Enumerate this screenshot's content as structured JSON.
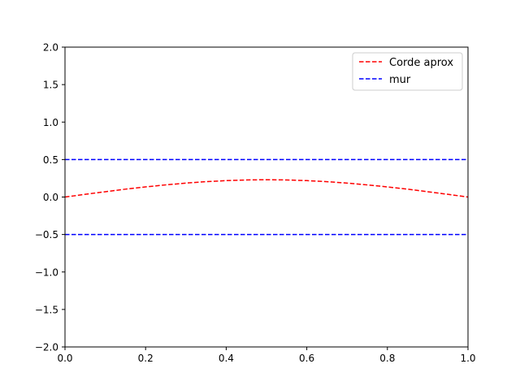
{
  "chart_data": {
    "type": "line",
    "xlim": [
      0.0,
      1.0
    ],
    "ylim": [
      -2.0,
      2.0
    ],
    "x_ticks": [
      "0.0",
      "0.2",
      "0.4",
      "0.6",
      "0.8",
      "1.0"
    ],
    "x_tick_values": [
      0.0,
      0.2,
      0.4,
      0.6,
      0.8,
      1.0
    ],
    "y_ticks": [
      "2.0",
      "1.5",
      "1.0",
      "0.5",
      "0.0",
      "−0.5",
      "−1.0",
      "−1.5",
      "−2.0"
    ],
    "y_tick_values": [
      2.0,
      1.5,
      1.0,
      0.5,
      0.0,
      -0.5,
      -1.0,
      -1.5,
      -2.0
    ],
    "grid": false,
    "legend_position": "top-right",
    "series": [
      {
        "name": "Corde aprox",
        "color": "#ff0000",
        "style": "dashed",
        "x": [
          0.0,
          0.05,
          0.1,
          0.15,
          0.2,
          0.25,
          0.3,
          0.35,
          0.4,
          0.45,
          0.5,
          0.55,
          0.6,
          0.65,
          0.7,
          0.75,
          0.8,
          0.85,
          0.9,
          0.95,
          1.0
        ],
        "y": [
          0.0,
          0.036,
          0.071,
          0.105,
          0.135,
          0.162,
          0.186,
          0.205,
          0.219,
          0.228,
          0.231,
          0.228,
          0.219,
          0.205,
          0.186,
          0.162,
          0.135,
          0.105,
          0.071,
          0.036,
          0.0
        ]
      },
      {
        "name": "mur",
        "color": "#0000ff",
        "style": "dashed",
        "x": [
          0.0,
          1.0
        ],
        "y": [
          0.5,
          0.5
        ]
      },
      {
        "color": "#0000ff",
        "style": "dashed",
        "x": [
          0.0,
          1.0
        ],
        "y": [
          -0.5,
          -0.5
        ]
      }
    ],
    "legend": [
      {
        "label": "Corde aprox",
        "color": "#ff0000"
      },
      {
        "label": "mur",
        "color": "#0000ff"
      }
    ]
  }
}
